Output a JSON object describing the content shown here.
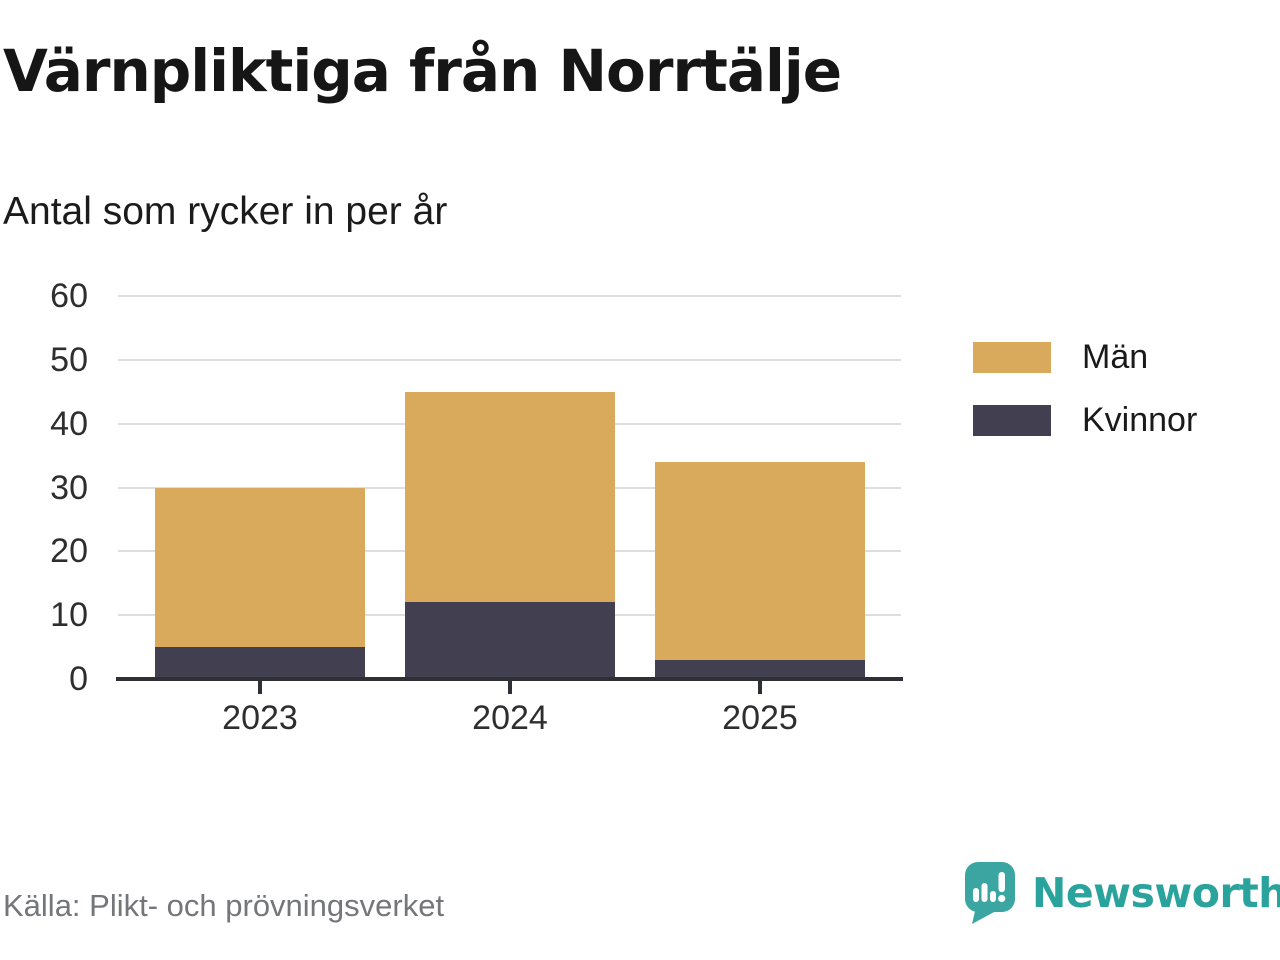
{
  "header": {
    "title": "Värnpliktiga från Norrtälje",
    "subtitle": "Antal som rycker in per år"
  },
  "footer": {
    "source": "Källa: Plikt- och prövningsverket",
    "brand": "Newsworthy"
  },
  "colors": {
    "men": "#d9a95c",
    "women": "#424050",
    "axis": "#2f2f36",
    "gridline": "#dedede",
    "brand_teal": "#3ba6a1",
    "brand_text_teal": "#2aa39c",
    "source_text": "#75767a"
  },
  "chart_data": {
    "type": "bar",
    "stacked": true,
    "title": "Värnpliktiga från Norrtälje",
    "subtitle": "Antal som rycker in per år",
    "categories": [
      "2023",
      "2024",
      "2025"
    ],
    "series": [
      {
        "name": "Män",
        "color": "#d9a95c",
        "values": [
          25,
          33,
          31
        ]
      },
      {
        "name": "Kvinnor",
        "color": "#424050",
        "values": [
          5,
          12,
          3
        ]
      }
    ],
    "stack_order": [
      "Kvinnor",
      "Män"
    ],
    "totals": [
      30,
      45,
      34
    ],
    "xlabel": "",
    "ylabel": "",
    "ylim": [
      0,
      60
    ],
    "yticks": [
      0,
      10,
      20,
      30,
      40,
      50,
      60
    ],
    "grid": true,
    "legend_position": "right"
  }
}
